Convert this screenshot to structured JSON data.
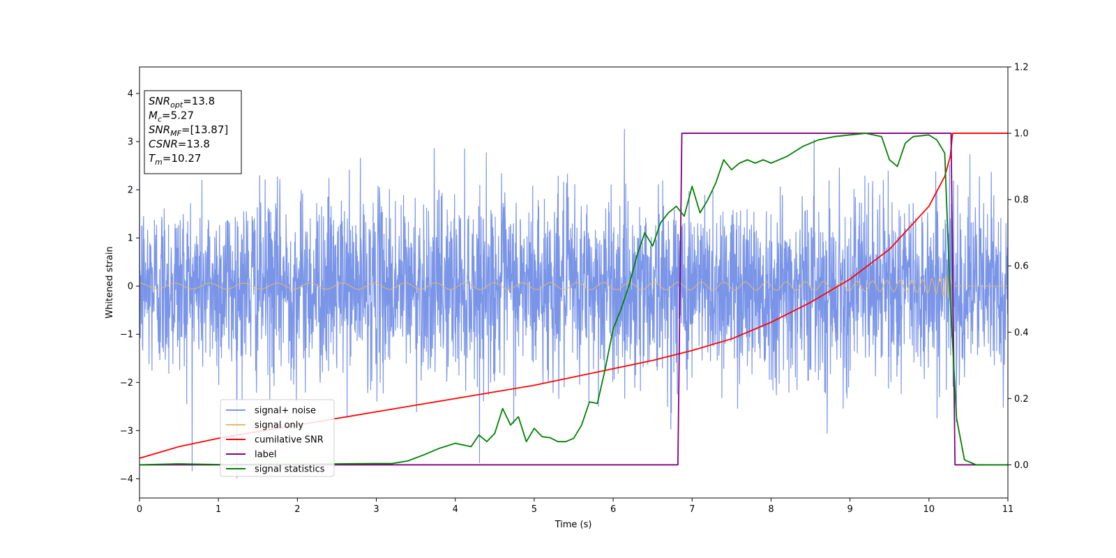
{
  "chart_data": {
    "type": "line",
    "xlabel": "Time (s)",
    "ylabel": "Whitened strain",
    "xlim": [
      0,
      11
    ],
    "ylim": [
      -4.4,
      4.55
    ],
    "y2lim": [
      -0.1,
      1.2
    ],
    "x_ticks": [
      0,
      1,
      2,
      3,
      4,
      5,
      6,
      7,
      8,
      9,
      10,
      11
    ],
    "y_ticks": [
      -4,
      -3,
      -2,
      -1,
      0,
      1,
      2,
      3,
      4
    ],
    "y2_ticks": [
      "0.0",
      "0.2",
      "0.4",
      "0.6",
      "0.8",
      "1.0",
      "1.2"
    ],
    "grid": false,
    "legend_position": "lower-left",
    "info_box": [
      {
        "var": "SNR",
        "sub": "opt",
        "value": "=13.8"
      },
      {
        "var": "M",
        "sub": "c",
        "value": "=5.27"
      },
      {
        "var": "SNR",
        "sub": "MF",
        "value": "=[13.87]"
      },
      {
        "var": "CSNR",
        "sub": "",
        "value": "=13.8"
      },
      {
        "var": "T",
        "sub": "m",
        "value": "=10.27"
      }
    ],
    "series": [
      {
        "name": "signal+ noise",
        "color": "#7a95e8",
        "axis": "left",
        "kind": "noise",
        "sigma": 1.0,
        "x_range": [
          0,
          11
        ]
      },
      {
        "name": "signal only",
        "color": "#e8b96a",
        "axis": "left",
        "kind": "chirp",
        "start_amplitude": 0.06,
        "merger_time": 10.27,
        "peak_amplitude": 1.05,
        "end_time": 10.3
      },
      {
        "name": "cumilative SNR",
        "color": "#ff0000",
        "axis": "right",
        "x": [
          0,
          0.5,
          1,
          1.5,
          2,
          2.5,
          3,
          3.5,
          4,
          4.5,
          5,
          5.5,
          6,
          6.5,
          7,
          7.5,
          8,
          8.5,
          9,
          9.5,
          10,
          10.2,
          10.27,
          10.3,
          11
        ],
        "y": [
          0.02,
          0.055,
          0.08,
          0.1,
          0.12,
          0.14,
          0.16,
          0.18,
          0.2,
          0.22,
          0.24,
          0.265,
          0.29,
          0.315,
          0.345,
          0.38,
          0.43,
          0.49,
          0.56,
          0.65,
          0.78,
          0.87,
          0.93,
          1.0,
          1.0
        ]
      },
      {
        "name": "label",
        "color": "#800080",
        "axis": "right",
        "x": [
          0,
          6.82,
          6.87,
          10.28,
          10.33,
          11
        ],
        "y": [
          0,
          0,
          1,
          1,
          0,
          0
        ]
      },
      {
        "name": "signal statistics",
        "color": "#008000",
        "axis": "right",
        "x": [
          0,
          0.5,
          1,
          1.5,
          2,
          2.5,
          3,
          3.2,
          3.4,
          3.6,
          3.8,
          4.0,
          4.2,
          4.3,
          4.4,
          4.5,
          4.6,
          4.7,
          4.8,
          4.9,
          5.0,
          5.1,
          5.2,
          5.3,
          5.4,
          5.5,
          5.6,
          5.7,
          5.8,
          5.9,
          6.0,
          6.1,
          6.2,
          6.3,
          6.4,
          6.5,
          6.6,
          6.7,
          6.8,
          6.9,
          7.0,
          7.1,
          7.2,
          7.3,
          7.4,
          7.5,
          7.6,
          7.7,
          7.8,
          7.9,
          8.0,
          8.2,
          8.4,
          8.6,
          8.8,
          9.0,
          9.2,
          9.4,
          9.5,
          9.6,
          9.7,
          9.8,
          10.0,
          10.1,
          10.2,
          10.27,
          10.35,
          10.45,
          10.6,
          11
        ],
        "y": [
          0,
          0.003,
          0.001,
          0.002,
          0.002,
          0.003,
          0.004,
          0.004,
          0.012,
          0.03,
          0.05,
          0.065,
          0.055,
          0.09,
          0.07,
          0.095,
          0.17,
          0.12,
          0.145,
          0.07,
          0.11,
          0.085,
          0.082,
          0.07,
          0.07,
          0.08,
          0.12,
          0.19,
          0.185,
          0.29,
          0.41,
          0.47,
          0.54,
          0.63,
          0.7,
          0.66,
          0.73,
          0.76,
          0.78,
          0.75,
          0.84,
          0.76,
          0.8,
          0.85,
          0.92,
          0.89,
          0.91,
          0.92,
          0.91,
          0.92,
          0.91,
          0.93,
          0.96,
          0.98,
          0.99,
          0.995,
          1.0,
          0.99,
          0.92,
          0.9,
          0.97,
          0.99,
          0.995,
          0.98,
          0.94,
          0.5,
          0.14,
          0.015,
          0.0,
          0.0
        ]
      }
    ]
  }
}
